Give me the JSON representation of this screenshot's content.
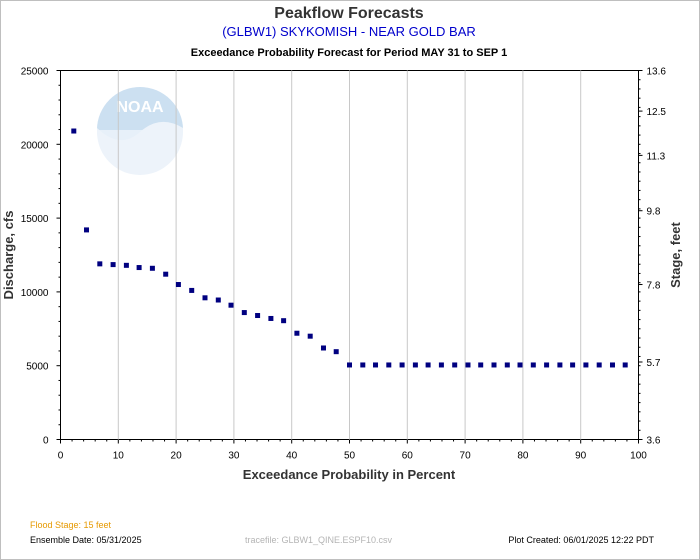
{
  "chart_data": {
    "type": "scatter",
    "title": "Peakflow Forecasts",
    "subtitle": "(GLBW1) SKYKOMISH - NEAR GOLD BAR",
    "subtitle2": "Exceedance Probability Forecast for Period MAY 31 to SEP 1",
    "xlabel": "Exceedance Probability in Percent",
    "ylabel": "Discharge, cfs",
    "y2label": "Stage, feet",
    "xlim": [
      0,
      100
    ],
    "ylim": [
      0,
      25000
    ],
    "y2lim": [
      3.6,
      13.6
    ],
    "xticks": [
      "0",
      "10",
      "20",
      "30",
      "40",
      "50",
      "60",
      "70",
      "80",
      "90",
      "100"
    ],
    "yticks": [
      "0",
      "5000",
      "10000",
      "15000",
      "20000",
      "25000"
    ],
    "y2ticks": [
      "3.6",
      "5.7",
      "7.8",
      "9.8",
      "11.3",
      "12.5",
      "13.6"
    ],
    "grid": true,
    "marker_color": "#000080",
    "series": [
      {
        "x": [
          2.3,
          4.5,
          6.8,
          9.1,
          11.4,
          13.6,
          15.9,
          18.2,
          20.4,
          22.7,
          25,
          27.3,
          29.5,
          31.8,
          34.1,
          36.4,
          38.6,
          40.9,
          43.2,
          45.5,
          47.7,
          50,
          52.3,
          54.5,
          56.8,
          59.1,
          61.4,
          63.6,
          65.9,
          68.2,
          70.5,
          72.7,
          75,
          77.3,
          79.5,
          81.8,
          84.1,
          86.4,
          88.6,
          90.9,
          93.2,
          95.5,
          97.7
        ],
        "values": [
          20900,
          14200,
          11900,
          11850,
          11800,
          11650,
          11600,
          11200,
          10500,
          10100,
          9600,
          9450,
          9100,
          8600,
          8400,
          8200,
          8050,
          7200,
          7000,
          6200,
          5950,
          5050,
          5050,
          5050,
          5050,
          5050,
          5050,
          5050,
          5050,
          5050,
          5050,
          5050,
          5050,
          5050,
          5050,
          5050,
          5050,
          5050,
          5050,
          5050,
          5050,
          5050,
          5050
        ]
      }
    ]
  },
  "footer": {
    "flood_stage": "Flood Stage: 15 feet",
    "ensemble_date": "Ensemble Date: 05/31/2025",
    "tracefile": "tracefile: GLBW1_QINE.ESPF10.csv",
    "plot_created": "Plot Created: 06/01/2025 12:22 PDT"
  },
  "watermark": {
    "text": "NOAA",
    "icon": "noaa-logo"
  }
}
